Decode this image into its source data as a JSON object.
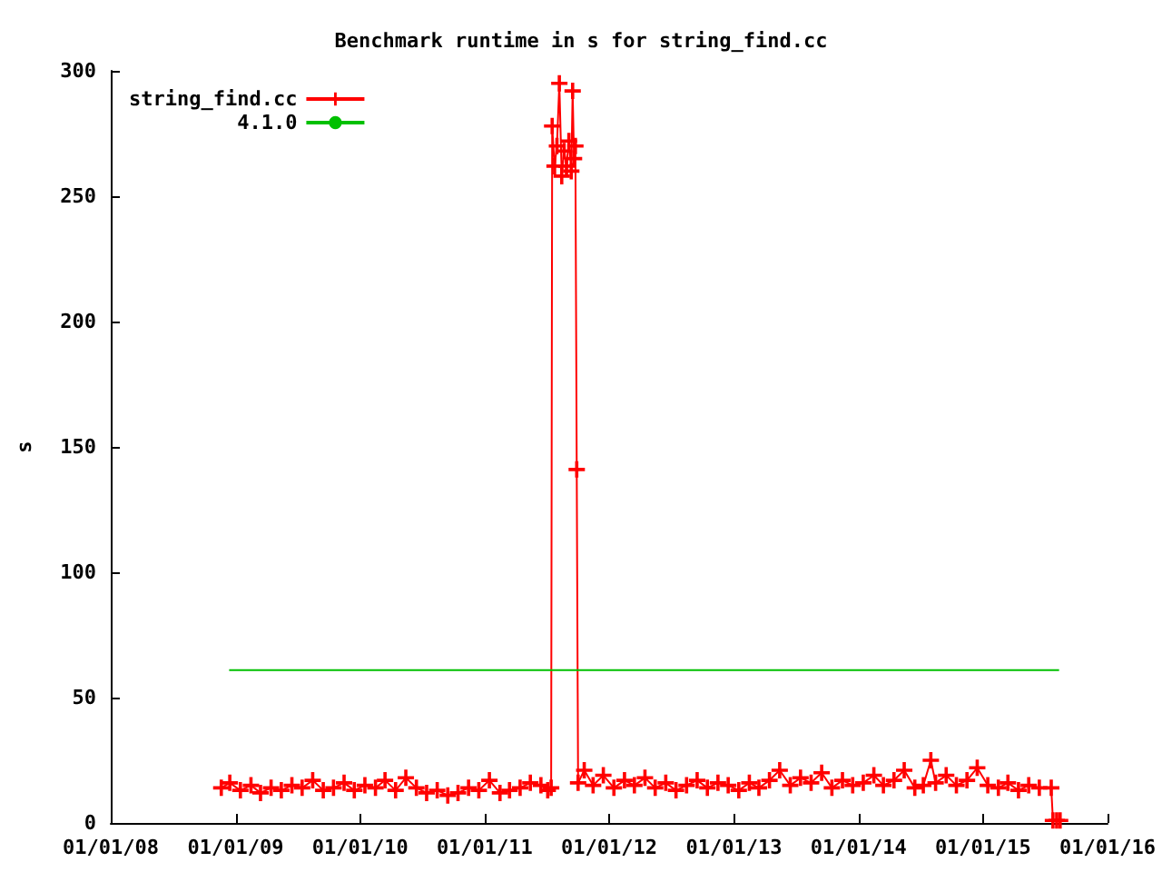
{
  "chart_data": {
    "type": "line",
    "title": "Benchmark runtime in s for string_find.cc",
    "ylabel": "s",
    "xlim": [
      "2008-01-01",
      "2016-01-01"
    ],
    "xticks": [
      {
        "value": "2008-01-01",
        "label": "01/01/08"
      },
      {
        "value": "2009-01-01",
        "label": "01/01/09"
      },
      {
        "value": "2010-01-01",
        "label": "01/01/10"
      },
      {
        "value": "2011-01-01",
        "label": "01/01/11"
      },
      {
        "value": "2012-01-01",
        "label": "01/01/12"
      },
      {
        "value": "2013-01-01",
        "label": "01/01/13"
      },
      {
        "value": "2014-01-01",
        "label": "01/01/14"
      },
      {
        "value": "2015-01-01",
        "label": "01/01/15"
      },
      {
        "value": "2016-01-01",
        "label": "01/01/16"
      }
    ],
    "ylim": [
      0,
      300
    ],
    "yticks": [
      0,
      50,
      100,
      150,
      200,
      250,
      300
    ],
    "grid": false,
    "legend": "top left",
    "marker": "cross",
    "series": [
      {
        "name": "string_find.cc",
        "color": "#ff0000",
        "x": [
          "2008-11-20",
          "2008-12-15",
          "2009-01-15",
          "2009-02-15",
          "2009-03-15",
          "2009-04-15",
          "2009-05-15",
          "2009-06-15",
          "2009-07-15",
          "2009-08-15",
          "2009-09-15",
          "2009-10-15",
          "2009-11-15",
          "2009-12-15",
          "2010-01-15",
          "2010-02-15",
          "2010-03-15",
          "2010-04-15",
          "2010-05-15",
          "2010-06-15",
          "2010-07-15",
          "2010-08-15",
          "2010-09-15",
          "2010-10-15",
          "2010-11-15",
          "2010-12-15",
          "2011-01-15",
          "2011-02-15",
          "2011-03-15",
          "2011-04-15",
          "2011-05-15",
          "2011-06-15",
          "2011-07-05",
          "2011-07-15",
          "2011-07-18",
          "2011-07-25",
          "2011-08-01",
          "2011-08-08",
          "2011-08-15",
          "2011-08-22",
          "2011-08-29",
          "2011-09-05",
          "2011-09-12",
          "2011-09-16",
          "2011-09-20",
          "2011-09-24",
          "2011-09-28",
          "2011-10-02",
          "2011-10-20",
          "2011-11-15",
          "2011-12-15",
          "2012-01-15",
          "2012-02-15",
          "2012-03-15",
          "2012-04-15",
          "2012-05-15",
          "2012-06-15",
          "2012-07-15",
          "2012-08-15",
          "2012-09-15",
          "2012-10-15",
          "2012-11-15",
          "2012-12-15",
          "2013-01-15",
          "2013-02-15",
          "2013-03-15",
          "2013-04-15",
          "2013-05-15",
          "2013-06-15",
          "2013-07-15",
          "2013-08-15",
          "2013-09-15",
          "2013-10-15",
          "2013-11-15",
          "2013-12-15",
          "2014-01-15",
          "2014-02-15",
          "2014-03-15",
          "2014-04-15",
          "2014-05-15",
          "2014-06-15",
          "2014-07-10",
          "2014-08-01",
          "2014-08-15",
          "2014-09-15",
          "2014-10-15",
          "2014-11-15",
          "2014-12-15",
          "2015-01-15",
          "2015-02-15",
          "2015-03-15",
          "2015-04-15",
          "2015-05-15",
          "2015-06-15",
          "2015-07-20",
          "2015-07-25",
          "2015-08-05",
          "2015-08-15"
        ],
        "values": [
          14,
          16,
          13,
          15,
          12,
          14,
          13,
          15,
          14,
          17,
          13,
          14,
          16,
          13,
          15,
          14,
          17,
          13,
          18,
          14,
          12,
          13,
          11,
          12,
          14,
          13,
          17,
          12,
          13,
          14,
          16,
          15,
          13,
          14,
          278,
          262,
          270,
          295,
          258,
          268,
          262,
          272,
          260,
          292,
          265,
          270,
          141,
          16,
          21,
          15,
          19,
          14,
          17,
          15,
          18,
          14,
          16,
          13,
          15,
          17,
          14,
          16,
          15,
          13,
          16,
          14,
          17,
          21,
          15,
          18,
          16,
          20,
          14,
          17,
          15,
          16,
          19,
          15,
          17,
          21,
          14,
          15,
          25,
          16,
          19,
          15,
          17,
          22,
          15,
          14,
          16,
          13,
          15,
          14,
          14,
          1,
          1,
          1
        ]
      },
      {
        "name": "4.1.0",
        "color": "#00c000",
        "marker": "none",
        "x": [
          "2008-12-13",
          "2015-08-12"
        ],
        "values": [
          61,
          61
        ]
      }
    ]
  }
}
